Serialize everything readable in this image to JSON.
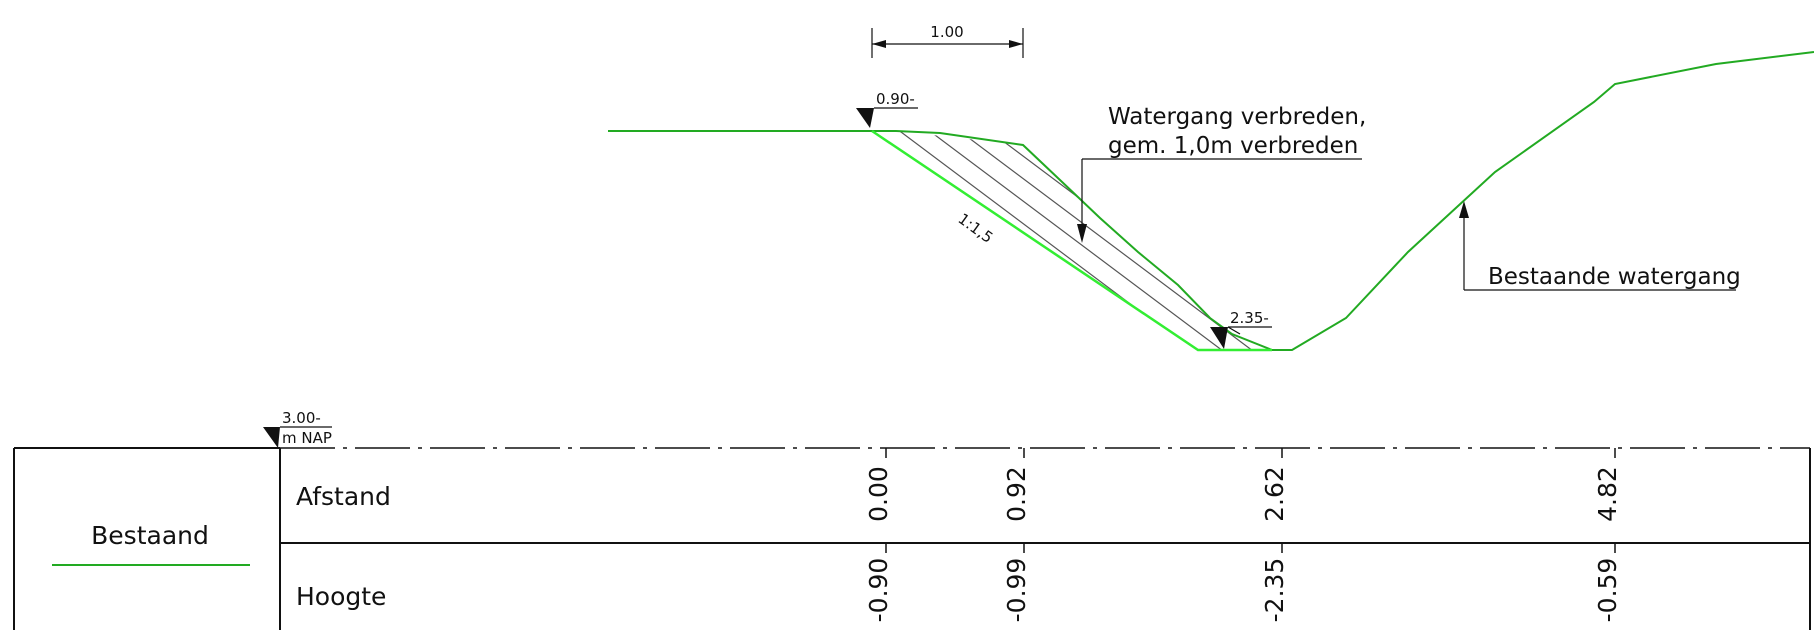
{
  "drawing": {
    "dimension_top": "1.00",
    "level_top": "0.90-",
    "level_bottom": "2.35-",
    "slope_label": "1:1,5",
    "annotation_new": {
      "line1": "Watergang verbreden,",
      "line2": "gem. 1,0m verbreden"
    },
    "annotation_existing": "Bestaande watergang",
    "reference_level": {
      "value": "3.00-",
      "unit": "m NAP"
    }
  },
  "legend": {
    "label": "Bestaand",
    "color": "#22aa22"
  },
  "table": {
    "row1_label": "Afstand",
    "row2_label": "Hoogte",
    "afstand": [
      "0.00",
      "0.92",
      "2.62",
      "4.82"
    ],
    "hoogte": [
      "-0.90",
      "-0.99",
      "-2.35",
      "-0.59"
    ]
  },
  "colors": {
    "existing_profile": "#22aa22",
    "new_profile": "#33ee33",
    "ink": "#111111",
    "hatch": "#555555"
  }
}
